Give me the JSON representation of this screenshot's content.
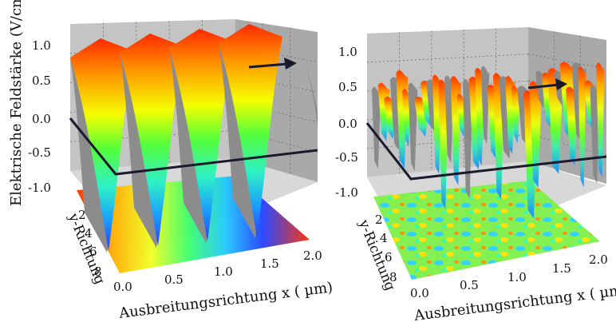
{
  "chart_data": [
    {
      "type": "surface",
      "panel": "left",
      "zlabel": "Elektrische Feldstärke (V/cm)",
      "ylabel": "y-Richtung",
      "xlabel": "Ausbreitungsrichtung x (  µm)",
      "xticks": [
        "0.0",
        "0.5",
        "1.0",
        "1.5",
        "2.0"
      ],
      "yticks": [
        "2",
        "4",
        "6",
        "8"
      ],
      "zticks": [
        "1.0",
        "0.5",
        "0.0",
        "-0.5",
        "-1.0"
      ],
      "zlim": [
        -1.0,
        1.0
      ],
      "xlim": [
        0.0,
        2.0
      ],
      "grid": true,
      "wave_periods_shown": 4
    },
    {
      "type": "surface",
      "panel": "right",
      "ylabel": "y-Richtung",
      "xlabel": "Ausbreitungsrichtung x (  µm)",
      "xticks": [
        "0.0",
        "0.5",
        "1.0",
        "1.5",
        "2.0"
      ],
      "yticks": [
        "2",
        "4",
        "6",
        "8"
      ],
      "zticks": [
        "1.0",
        "0.5",
        "0.0",
        "-0.5",
        "-1.0"
      ],
      "zlim": [
        -1.0,
        1.0
      ],
      "xlim": [
        0.0,
        2.0
      ],
      "grid": true
    }
  ],
  "colors": {
    "wall": "#bdbdbd",
    "wall_dark": "#9a9a9a",
    "surface_side": "#8a8a8a",
    "arrow": "#1a1a2e"
  }
}
